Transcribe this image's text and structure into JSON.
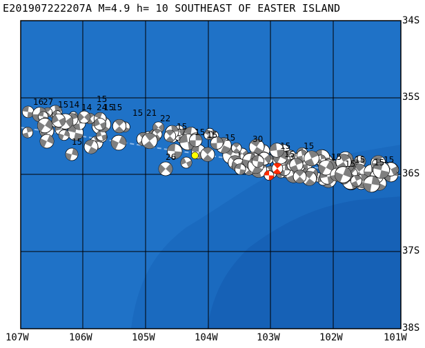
{
  "title": "E201907222207A M=4.9 h= 10 SOUTHEAST OF EASTER ISLAND",
  "colors": {
    "ocean": "#1f72c7",
    "deep_ocean": "#1565c0",
    "ridge": "#2a80d4",
    "grid": "#000000",
    "beachball_fill": "#7f7f7f",
    "current_event": "#ff2a00",
    "selected_event": "#ffff00"
  },
  "axes": {
    "lat_labels": [
      "34S",
      "35S",
      "36S",
      "37S",
      "38S"
    ],
    "lon_labels": [
      "107W",
      "106W",
      "105W",
      "104W",
      "103W",
      "102W",
      "101W"
    ]
  },
  "depth_labels": [
    "16",
    "27",
    "15",
    "14",
    "14",
    "24",
    "15",
    "15",
    "15",
    "15",
    "21",
    "22",
    "15",
    "15",
    "15",
    "15",
    "30",
    "15",
    "15",
    "15",
    "15",
    "15",
    "15",
    "15",
    "26",
    "15",
    "15"
  ],
  "events": {
    "current": {
      "lon": -102.95,
      "lat": -35.92,
      "label": "M=4.9 h=10"
    },
    "highlight": {
      "lon": -104.25,
      "lat": -35.75
    }
  },
  "icons": [
    "beachball-icon"
  ]
}
